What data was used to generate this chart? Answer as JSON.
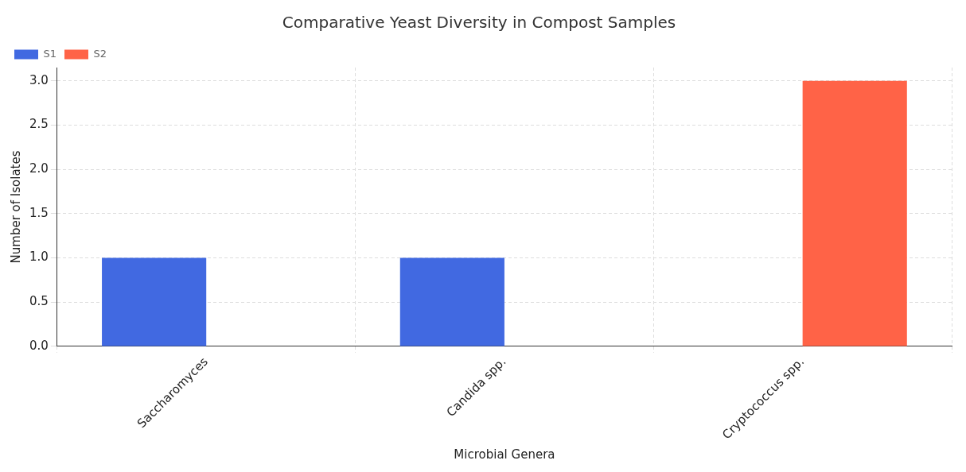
{
  "chart_data": {
    "type": "bar",
    "title": "Comparative Yeast Diversity in Compost Samples",
    "xlabel": "Microbial Genera",
    "ylabel": "Number of Isolates",
    "categories": [
      "Saccharomyces",
      "Candida spp.",
      "Cryptococcus spp."
    ],
    "series": [
      {
        "name": "S1",
        "color": "#4169e1",
        "values": [
          1,
          1,
          0
        ]
      },
      {
        "name": "S2",
        "color": "#ff6347",
        "values": [
          0,
          0,
          3
        ]
      }
    ],
    "ylim": [
      0,
      3.15
    ],
    "yticks": [
      {
        "value": 0,
        "label": "0.0"
      },
      {
        "value": 0.5,
        "label": "0.5"
      },
      {
        "value": 1,
        "label": "1.0"
      },
      {
        "value": 1.5,
        "label": "1.5"
      },
      {
        "value": 2,
        "label": "2.0"
      },
      {
        "value": 2.5,
        "label": "2.5"
      },
      {
        "value": 3,
        "label": "3.0"
      }
    ],
    "grid": true,
    "legend": "top left"
  }
}
